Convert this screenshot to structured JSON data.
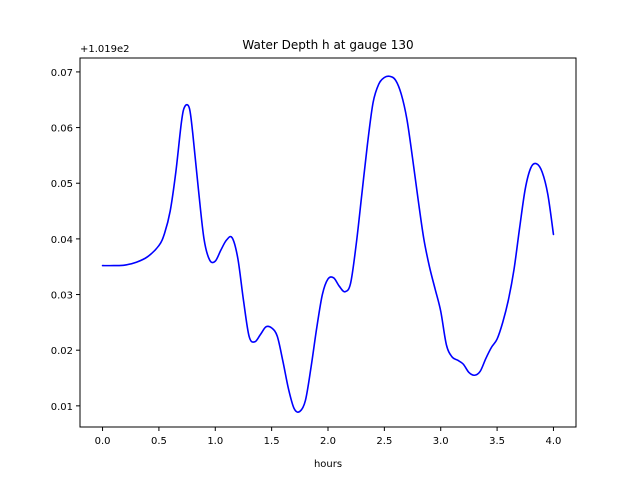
{
  "chart_data": {
    "type": "line",
    "title": "Water Depth h at gauge 130",
    "xlabel": "hours",
    "ylabel": "",
    "y_offset_label": "+1.019e2",
    "xlim": [
      -0.2,
      4.2
    ],
    "ylim": [
      0.0062,
      0.0725
    ],
    "x_ticks": [
      0.0,
      0.5,
      1.0,
      1.5,
      2.0,
      2.5,
      3.0,
      3.5,
      4.0
    ],
    "x_tick_labels": [
      "0.0",
      "0.5",
      "1.0",
      "1.5",
      "2.0",
      "2.5",
      "3.0",
      "3.5",
      "4.0"
    ],
    "y_ticks": [
      0.01,
      0.02,
      0.03,
      0.04,
      0.05,
      0.06,
      0.07
    ],
    "y_tick_labels": [
      "0.01",
      "0.02",
      "0.03",
      "0.04",
      "0.05",
      "0.06",
      "0.07"
    ],
    "grid": false,
    "series": [
      {
        "color": "#0000ff",
        "x": [
          0.0,
          0.1,
          0.2,
          0.3,
          0.4,
          0.5,
          0.55,
          0.6,
          0.65,
          0.7,
          0.73,
          0.77,
          0.8,
          0.85,
          0.9,
          0.95,
          1.0,
          1.05,
          1.1,
          1.15,
          1.2,
          1.25,
          1.3,
          1.35,
          1.4,
          1.45,
          1.5,
          1.55,
          1.6,
          1.65,
          1.7,
          1.75,
          1.8,
          1.85,
          1.9,
          1.95,
          2.0,
          2.05,
          2.1,
          2.15,
          2.2,
          2.25,
          2.3,
          2.35,
          2.4,
          2.45,
          2.5,
          2.55,
          2.6,
          2.65,
          2.7,
          2.75,
          2.8,
          2.85,
          2.9,
          2.95,
          3.0,
          3.05,
          3.1,
          3.15,
          3.2,
          3.25,
          3.3,
          3.35,
          3.4,
          3.45,
          3.5,
          3.55,
          3.6,
          3.65,
          3.7,
          3.75,
          3.8,
          3.85,
          3.9,
          3.95,
          4.0
        ],
        "y": [
          0.0352,
          0.0352,
          0.0353,
          0.0358,
          0.0368,
          0.0388,
          0.041,
          0.045,
          0.052,
          0.061,
          0.0638,
          0.0635,
          0.059,
          0.049,
          0.04,
          0.0362,
          0.036,
          0.038,
          0.0398,
          0.0402,
          0.0365,
          0.029,
          0.0225,
          0.0215,
          0.0228,
          0.0242,
          0.024,
          0.0225,
          0.018,
          0.013,
          0.0095,
          0.009,
          0.011,
          0.017,
          0.024,
          0.03,
          0.0328,
          0.033,
          0.0315,
          0.0305,
          0.032,
          0.039,
          0.048,
          0.057,
          0.0645,
          0.0678,
          0.069,
          0.0692,
          0.0685,
          0.066,
          0.0615,
          0.0545,
          0.047,
          0.04,
          0.035,
          0.031,
          0.027,
          0.021,
          0.0188,
          0.0182,
          0.0175,
          0.016,
          0.0155,
          0.0162,
          0.0185,
          0.0205,
          0.022,
          0.025,
          0.029,
          0.0345,
          0.042,
          0.049,
          0.0528,
          0.0535,
          0.052,
          0.048,
          0.0408
        ]
      }
    ]
  }
}
